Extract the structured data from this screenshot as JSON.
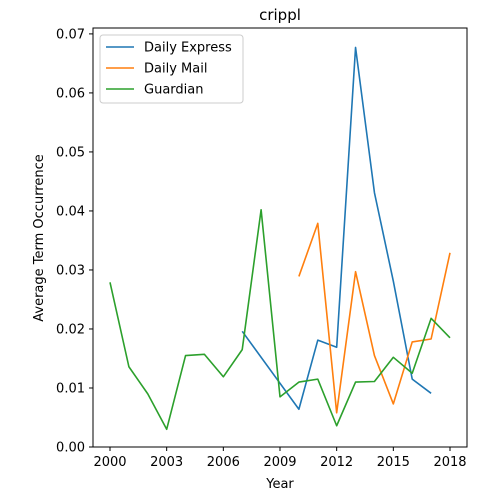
{
  "chart_data": {
    "type": "line",
    "title": "crippl",
    "xlabel": "Year",
    "ylabel": "Average Term Occurrence",
    "xlim": [
      1999.1,
      2018.9
    ],
    "ylim": [
      0,
      0.071
    ],
    "x_ticks": [
      2000,
      2003,
      2006,
      2009,
      2012,
      2015,
      2018
    ],
    "y_ticks": [
      0.0,
      0.01,
      0.02,
      0.03,
      0.04,
      0.05,
      0.06,
      0.07
    ],
    "x_tick_labels": [
      "2000",
      "2003",
      "2006",
      "2009",
      "2012",
      "2015",
      "2018"
    ],
    "y_tick_labels": [
      "0.00",
      "0.01",
      "0.02",
      "0.03",
      "0.04",
      "0.05",
      "0.06",
      "0.07"
    ],
    "grid": false,
    "legend_position": "top-left",
    "series": [
      {
        "name": "Daily Express",
        "color": "#1f77b4",
        "x": [
          2007,
          2010,
          2011,
          2012,
          2013,
          2014,
          2015,
          2016,
          2017
        ],
        "y": [
          0.0196,
          0.0064,
          0.0181,
          0.0169,
          0.0677,
          0.0431,
          0.0281,
          0.0115,
          0.0091
        ]
      },
      {
        "name": "Daily Mail",
        "color": "#ff7f0e",
        "x": [
          2010,
          2011,
          2012,
          2013,
          2014,
          2015,
          2016,
          2017,
          2018
        ],
        "y": [
          0.0289,
          0.0379,
          0.0058,
          0.0297,
          0.0155,
          0.0073,
          0.0178,
          0.0183,
          0.0329
        ]
      },
      {
        "name": "Guardian",
        "color": "#2ca02c",
        "x": [
          2000,
          2001,
          2002,
          2003,
          2004,
          2005,
          2006,
          2007,
          2008,
          2009,
          2010,
          2011,
          2012,
          2013,
          2014,
          2015,
          2016,
          2017,
          2018
        ],
        "y": [
          0.0279,
          0.0136,
          0.009,
          0.003,
          0.0155,
          0.0157,
          0.0119,
          0.0165,
          0.0402,
          0.0085,
          0.011,
          0.0115,
          0.0036,
          0.011,
          0.0111,
          0.0152,
          0.0125,
          0.0218,
          0.0185
        ]
      }
    ]
  }
}
